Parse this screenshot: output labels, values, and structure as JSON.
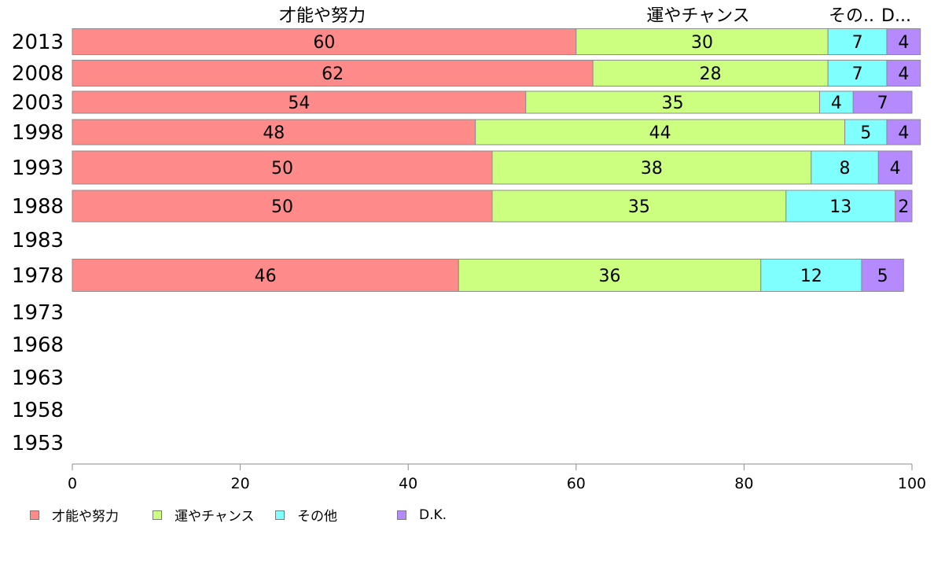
{
  "chart_data": {
    "type": "bar",
    "orientation": "horizontal",
    "stacked": true,
    "categories": [
      "2013",
      "2008",
      "2003",
      "1998",
      "1993",
      "1988",
      "1983",
      "1978",
      "1973",
      "1968",
      "1963",
      "1958",
      "1953"
    ],
    "series": [
      {
        "name": "才能や努力",
        "color": "#ff8a8a",
        "values": [
          60,
          62,
          54,
          48,
          50,
          50,
          null,
          46,
          null,
          null,
          null,
          null,
          null
        ]
      },
      {
        "name": "運やチャンス",
        "color": "#ccff80",
        "values": [
          30,
          28,
          35,
          44,
          38,
          35,
          null,
          36,
          null,
          null,
          null,
          null,
          null
        ]
      },
      {
        "name": "その他",
        "color": "#80ffff",
        "values": [
          7,
          7,
          4,
          5,
          8,
          13,
          null,
          12,
          null,
          null,
          null,
          null,
          null
        ]
      },
      {
        "name": "D.K.",
        "color": "#b58aff",
        "values": [
          4,
          4,
          7,
          4,
          4,
          2,
          null,
          5,
          null,
          null,
          null,
          null,
          null
        ]
      }
    ],
    "top_labels": [
      "才能や努力",
      "運やチャンス",
      "その..",
      "D..."
    ],
    "xlim": [
      0,
      100
    ],
    "xticks": [
      0,
      20,
      40,
      60,
      80,
      100
    ],
    "grid": false,
    "legend_position": "bottom-left"
  }
}
